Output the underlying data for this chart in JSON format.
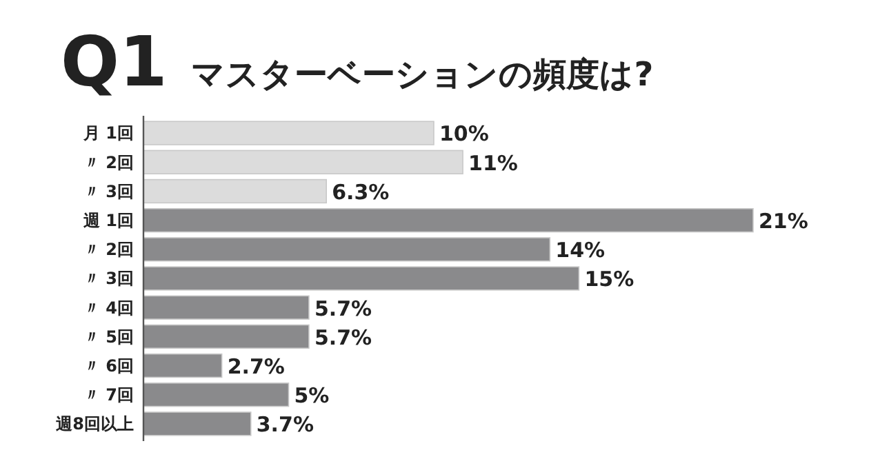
{
  "chart_data": {
    "type": "bar",
    "orientation": "horizontal",
    "title": "Q1 マスターベーションの頻度は?",
    "categories": [
      "月 1回",
      "〃 2回",
      "〃 3回",
      "週 1回",
      "〃 2回",
      "〃 3回",
      "〃 4回",
      "〃 5回",
      "〃 6回",
      "〃 7回",
      "週8回以上"
    ],
    "values": [
      10,
      11,
      6.3,
      21,
      14,
      15,
      5.7,
      5.7,
      2.7,
      5,
      3.7
    ],
    "value_labels": [
      "10%",
      "11%",
      "6.3%",
      "21%",
      "14%",
      "15%",
      "5.7%",
      "5.7%",
      "2.7%",
      "5%",
      "3.7%"
    ],
    "colors": [
      "#dcdcdc",
      "#dcdcdc",
      "#dcdcdc",
      "#8a8a8c",
      "#8a8a8c",
      "#8a8a8c",
      "#8a8a8c",
      "#8a8a8c",
      "#8a8a8c",
      "#8a8a8c",
      "#8a8a8c"
    ]
  }
}
